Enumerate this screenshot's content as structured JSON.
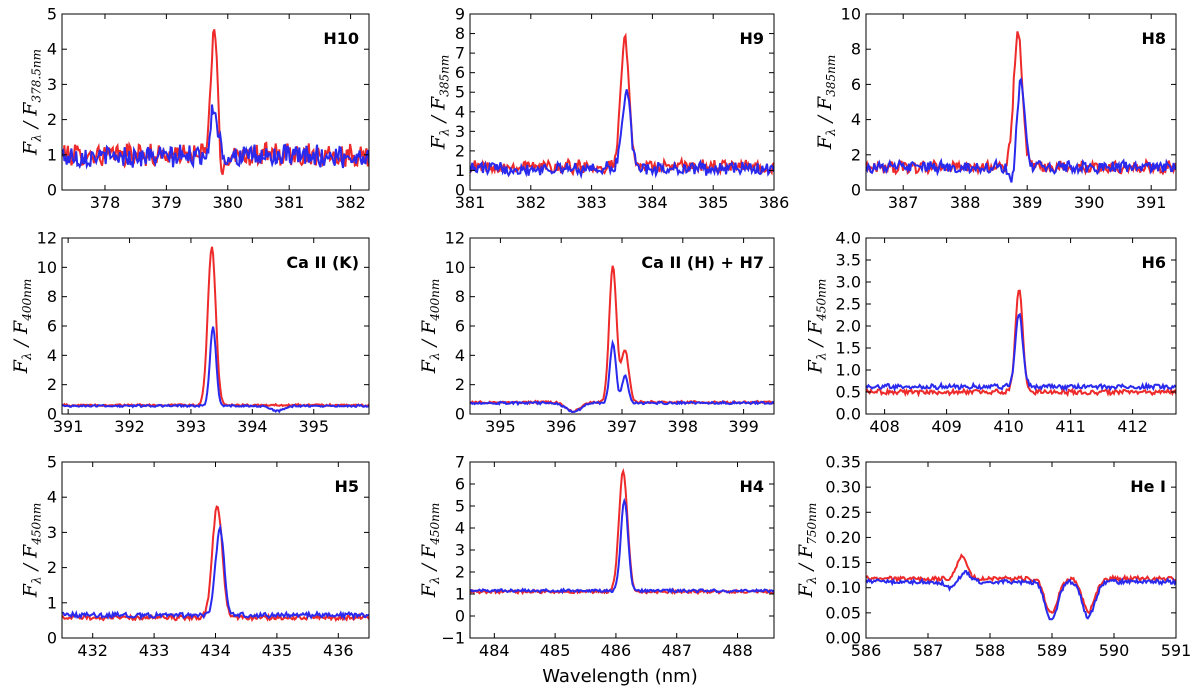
{
  "figure": {
    "xlabel": "Wavelength (nm)"
  },
  "series_colors": {
    "red": "#ee2a2a",
    "blue": "#2a2aee"
  },
  "chart_data": [
    {
      "type": "line",
      "title": "H10",
      "ylabel_main": "F",
      "ylabel_sub1": "λ",
      "ylabel_den_sub": "378.5nm",
      "xlim": [
        377.3,
        382.3
      ],
      "ylim": [
        0,
        5
      ],
      "xticks": [
        378,
        379,
        380,
        381,
        382
      ],
      "xtick_labels": [
        "378",
        "379",
        "380",
        "381",
        "382"
      ],
      "yticks": [
        0,
        1,
        2,
        3,
        4,
        5
      ],
      "ytick_labels": [
        "0",
        "1",
        "2",
        "3",
        "4",
        "5"
      ],
      "series": [
        {
          "name": "red",
          "color": "#ee2a2a",
          "baseline": 1.0,
          "noise": 0.28,
          "peaks": [
            [
              379.78,
              3.6,
              0.055
            ],
            [
              379.9,
              -0.8,
              0.04
            ]
          ]
        },
        {
          "name": "blue",
          "color": "#2a2aee",
          "baseline": 0.95,
          "noise": 0.28,
          "peaks": [
            [
              379.78,
              1.4,
              0.06
            ]
          ]
        }
      ]
    },
    {
      "type": "line",
      "title": "H9",
      "ylabel_main": "F",
      "ylabel_sub1": "λ",
      "ylabel_den_sub": "385nm",
      "xlim": [
        381,
        386
      ],
      "ylim": [
        0,
        9
      ],
      "xticks": [
        381,
        382,
        383,
        384,
        385,
        386
      ],
      "xtick_labels": [
        "381",
        "382",
        "383",
        "384",
        "385",
        "386"
      ],
      "yticks": [
        0,
        1,
        2,
        3,
        4,
        5,
        6,
        7,
        8,
        9
      ],
      "ytick_labels": [
        "0",
        "1",
        "2",
        "3",
        "4",
        "5",
        "6",
        "7",
        "8",
        "9"
      ],
      "series": [
        {
          "name": "red",
          "color": "#ee2a2a",
          "baseline": 1.2,
          "noise": 0.3,
          "peaks": [
            [
              383.55,
              6.5,
              0.07
            ]
          ]
        },
        {
          "name": "blue",
          "color": "#2a2aee",
          "baseline": 1.1,
          "noise": 0.3,
          "peaks": [
            [
              383.57,
              3.9,
              0.07
            ]
          ]
        }
      ]
    },
    {
      "type": "line",
      "title": "H8",
      "ylabel_main": "F",
      "ylabel_sub1": "λ",
      "ylabel_den_sub": "385nm",
      "xlim": [
        386.4,
        391.4
      ],
      "ylim": [
        0,
        10
      ],
      "xticks": [
        387,
        388,
        389,
        390,
        391
      ],
      "xtick_labels": [
        "387",
        "388",
        "389",
        "390",
        "391"
      ],
      "yticks": [
        0,
        2,
        4,
        6,
        8,
        10
      ],
      "ytick_labels": [
        "0",
        "2",
        "4",
        "6",
        "8",
        "10"
      ],
      "series": [
        {
          "name": "red",
          "color": "#ee2a2a",
          "baseline": 1.3,
          "noise": 0.3,
          "peaks": [
            [
              388.85,
              7.6,
              0.07
            ]
          ]
        },
        {
          "name": "blue",
          "color": "#2a2aee",
          "baseline": 1.3,
          "noise": 0.3,
          "peaks": [
            [
              388.9,
              5.0,
              0.06
            ],
            [
              388.75,
              -1.0,
              0.05
            ]
          ]
        }
      ]
    },
    {
      "type": "line",
      "title": "Ca II (K)",
      "ylabel_main": "F",
      "ylabel_sub1": "λ",
      "ylabel_den_sub": "400nm",
      "xlim": [
        390.9,
        395.9
      ],
      "ylim": [
        0,
        12
      ],
      "xticks": [
        391,
        392,
        393,
        394,
        395
      ],
      "xtick_labels": [
        "391",
        "392",
        "393",
        "394",
        "395"
      ],
      "yticks": [
        0,
        2,
        4,
        6,
        8,
        10,
        12
      ],
      "ytick_labels": [
        "0",
        "2",
        "4",
        "6",
        "8",
        "10",
        "12"
      ],
      "series": [
        {
          "name": "red",
          "color": "#ee2a2a",
          "baseline": 0.6,
          "noise": 0.06,
          "peaks": [
            [
              393.34,
              10.8,
              0.065
            ]
          ]
        },
        {
          "name": "blue",
          "color": "#2a2aee",
          "baseline": 0.55,
          "noise": 0.06,
          "peaks": [
            [
              393.36,
              5.4,
              0.05
            ],
            [
              394.4,
              -0.35,
              0.1
            ]
          ]
        }
      ]
    },
    {
      "type": "line",
      "title": "Ca II (H) + H7",
      "ylabel_main": "F",
      "ylabel_sub1": "λ",
      "ylabel_den_sub": "400nm",
      "xlim": [
        394.5,
        399.5
      ],
      "ylim": [
        0,
        12
      ],
      "xticks": [
        395,
        396,
        397,
        398,
        399
      ],
      "xtick_labels": [
        "395",
        "396",
        "397",
        "398",
        "399"
      ],
      "yticks": [
        0,
        2,
        4,
        6,
        8,
        10,
        12
      ],
      "ytick_labels": [
        "0",
        "2",
        "4",
        "6",
        "8",
        "10",
        "12"
      ],
      "series": [
        {
          "name": "red",
          "color": "#ee2a2a",
          "baseline": 0.8,
          "noise": 0.07,
          "peaks": [
            [
              396.85,
              9.3,
              0.06
            ],
            [
              397.05,
              3.6,
              0.06
            ],
            [
              396.2,
              -0.6,
              0.12
            ]
          ]
        },
        {
          "name": "blue",
          "color": "#2a2aee",
          "baseline": 0.75,
          "noise": 0.07,
          "peaks": [
            [
              396.85,
              4.1,
              0.05
            ],
            [
              397.05,
              1.9,
              0.05
            ],
            [
              396.2,
              -0.6,
              0.12
            ]
          ]
        }
      ]
    },
    {
      "type": "line",
      "title": "H6",
      "ylabel_main": "F",
      "ylabel_sub1": "λ",
      "ylabel_den_sub": "450nm",
      "xlim": [
        407.7,
        412.7
      ],
      "ylim": [
        0,
        4
      ],
      "xticks": [
        408,
        409,
        410,
        411,
        412
      ],
      "xtick_labels": [
        "408",
        "409",
        "410",
        "411",
        "412"
      ],
      "yticks": [
        0,
        0.5,
        1,
        1.5,
        2,
        2.5,
        3,
        3.5,
        4
      ],
      "ytick_labels": [
        "0.0",
        "0.5",
        "1.0",
        "1.5",
        "2.0",
        "2.5",
        "3.0",
        "3.5",
        "4.0"
      ],
      "series": [
        {
          "name": "red",
          "color": "#ee2a2a",
          "baseline": 0.5,
          "noise": 0.05,
          "peaks": [
            [
              410.17,
              2.3,
              0.06
            ]
          ]
        },
        {
          "name": "blue",
          "color": "#2a2aee",
          "baseline": 0.62,
          "noise": 0.05,
          "peaks": [
            [
              410.17,
              1.65,
              0.06
            ]
          ]
        }
      ]
    },
    {
      "type": "line",
      "title": "H5",
      "ylabel_main": "F",
      "ylabel_sub1": "λ",
      "ylabel_den_sub": "450nm",
      "xlim": [
        431.5,
        436.5
      ],
      "ylim": [
        0,
        5
      ],
      "xticks": [
        432,
        433,
        434,
        435,
        436
      ],
      "xtick_labels": [
        "432",
        "433",
        "434",
        "435",
        "436"
      ],
      "yticks": [
        0,
        1,
        2,
        3,
        4,
        5
      ],
      "ytick_labels": [
        "0",
        "1",
        "2",
        "3",
        "4",
        "5"
      ],
      "series": [
        {
          "name": "red",
          "color": "#ee2a2a",
          "baseline": 0.58,
          "noise": 0.06,
          "peaks": [
            [
              434.03,
              3.2,
              0.08
            ]
          ]
        },
        {
          "name": "blue",
          "color": "#2a2aee",
          "baseline": 0.65,
          "noise": 0.06,
          "peaks": [
            [
              434.07,
              2.45,
              0.07
            ]
          ]
        }
      ]
    },
    {
      "type": "line",
      "title": "H4",
      "ylabel_main": "F",
      "ylabel_sub1": "λ",
      "ylabel_den_sub": "450nm",
      "xlim": [
        483.6,
        488.6
      ],
      "ylim": [
        -1,
        7
      ],
      "xticks": [
        484,
        485,
        486,
        487,
        488
      ],
      "xtick_labels": [
        "484",
        "485",
        "486",
        "487",
        "488"
      ],
      "yticks": [
        -1,
        0,
        1,
        2,
        3,
        4,
        5,
        6,
        7
      ],
      "ytick_labels": [
        "−1",
        "0",
        "1",
        "2",
        "3",
        "4",
        "5",
        "6",
        "7"
      ],
      "series": [
        {
          "name": "red",
          "color": "#ee2a2a",
          "baseline": 1.1,
          "noise": 0.06,
          "peaks": [
            [
              486.12,
              5.5,
              0.07
            ]
          ]
        },
        {
          "name": "blue",
          "color": "#2a2aee",
          "baseline": 1.15,
          "noise": 0.06,
          "peaks": [
            [
              486.14,
              4.1,
              0.06
            ]
          ]
        }
      ]
    },
    {
      "type": "line",
      "title": "He I",
      "ylabel_main": "F",
      "ylabel_sub1": "λ",
      "ylabel_den_sub": "750nm",
      "xlim": [
        586,
        591
      ],
      "ylim": [
        0,
        0.35
      ],
      "xticks": [
        586,
        587,
        588,
        589,
        590,
        591
      ],
      "xtick_labels": [
        "586",
        "587",
        "588",
        "589",
        "590",
        "591"
      ],
      "yticks": [
        0,
        0.05,
        0.1,
        0.15,
        0.2,
        0.25,
        0.3,
        0.35
      ],
      "ytick_labels": [
        "0.00",
        "0.05",
        "0.10",
        "0.15",
        "0.20",
        "0.25",
        "0.30",
        "0.35"
      ],
      "series": [
        {
          "name": "red",
          "color": "#ee2a2a",
          "baseline": 0.118,
          "noise": 0.004,
          "peaks": [
            [
              587.55,
              0.045,
              0.08
            ],
            [
              588.99,
              -0.07,
              0.1
            ],
            [
              589.59,
              -0.065,
              0.1
            ]
          ]
        },
        {
          "name": "blue",
          "color": "#2a2aee",
          "baseline": 0.112,
          "noise": 0.004,
          "peaks": [
            [
              587.6,
              0.02,
              0.08
            ],
            [
              587.35,
              -0.012,
              0.08
            ],
            [
              588.99,
              -0.075,
              0.1
            ],
            [
              589.59,
              -0.07,
              0.1
            ]
          ]
        }
      ]
    }
  ]
}
